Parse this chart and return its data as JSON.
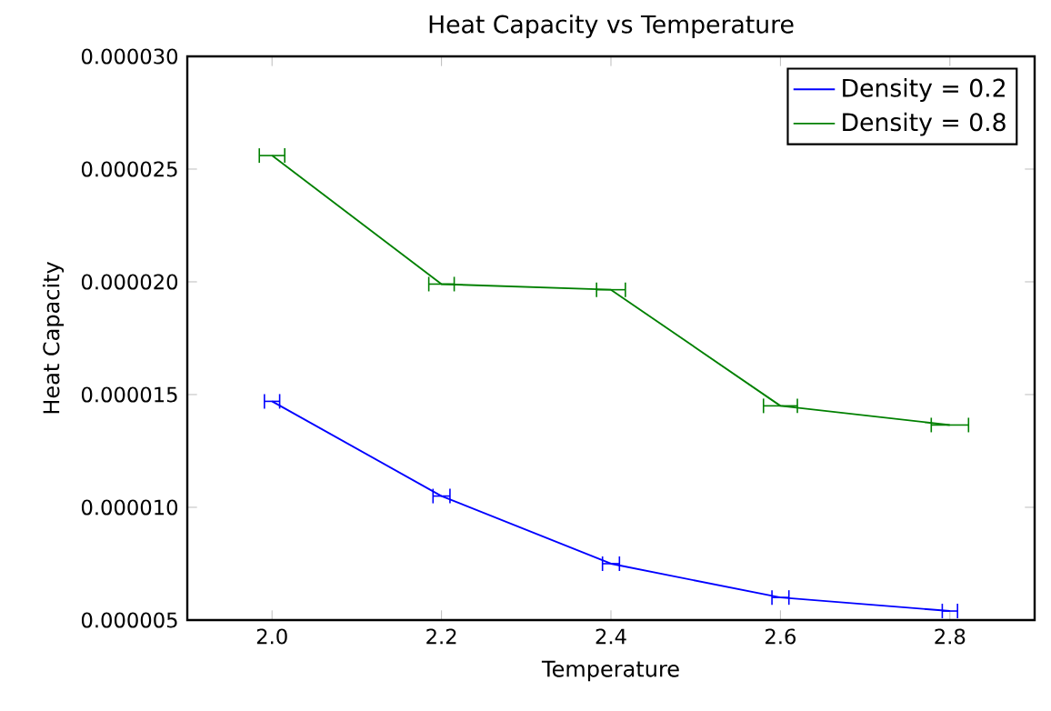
{
  "chart_data": {
    "type": "line",
    "title": "Heat Capacity vs Temperature",
    "xlabel": "Temperature",
    "ylabel": "Heat Capacity",
    "xlim": [
      1.9,
      2.9
    ],
    "xticks": [
      {
        "value": 2.0,
        "label": "2.0"
      },
      {
        "value": 2.2,
        "label": "2.2"
      },
      {
        "value": 2.4,
        "label": "2.4"
      },
      {
        "value": 2.6,
        "label": "2.6"
      },
      {
        "value": 2.8,
        "label": "2.8"
      }
    ],
    "ylim": [
      5e-06,
      3e-05
    ],
    "yticks": [
      {
        "value": 5e-06,
        "label": "0.000005"
      },
      {
        "value": 1e-05,
        "label": "0.000010"
      },
      {
        "value": 1.5e-05,
        "label": "0.000015"
      },
      {
        "value": 2e-05,
        "label": "0.000020"
      },
      {
        "value": 2.5e-05,
        "label": "0.000025"
      },
      {
        "value": 3e-05,
        "label": "0.000030"
      }
    ],
    "x": [
      2.0,
      2.2,
      2.4,
      2.6,
      2.8
    ],
    "series": [
      {
        "name": "Density = 0.2",
        "color": "#0000ff",
        "values": [
          1.47e-05,
          1.05e-05,
          7.5e-06,
          6e-06,
          5.4e-06
        ],
        "xerrors": [
          0.009,
          0.01,
          0.01,
          0.01,
          0.009
        ]
      },
      {
        "name": "Density = 0.8",
        "color": "#008000",
        "values": [
          2.56e-05,
          1.99e-05,
          1.965e-05,
          1.45e-05,
          1.365e-05
        ],
        "xerrors": [
          0.015,
          0.015,
          0.017,
          0.02,
          0.022
        ]
      }
    ],
    "legend": "top right",
    "grid": false,
    "marker": "none",
    "line_style": "solid"
  }
}
